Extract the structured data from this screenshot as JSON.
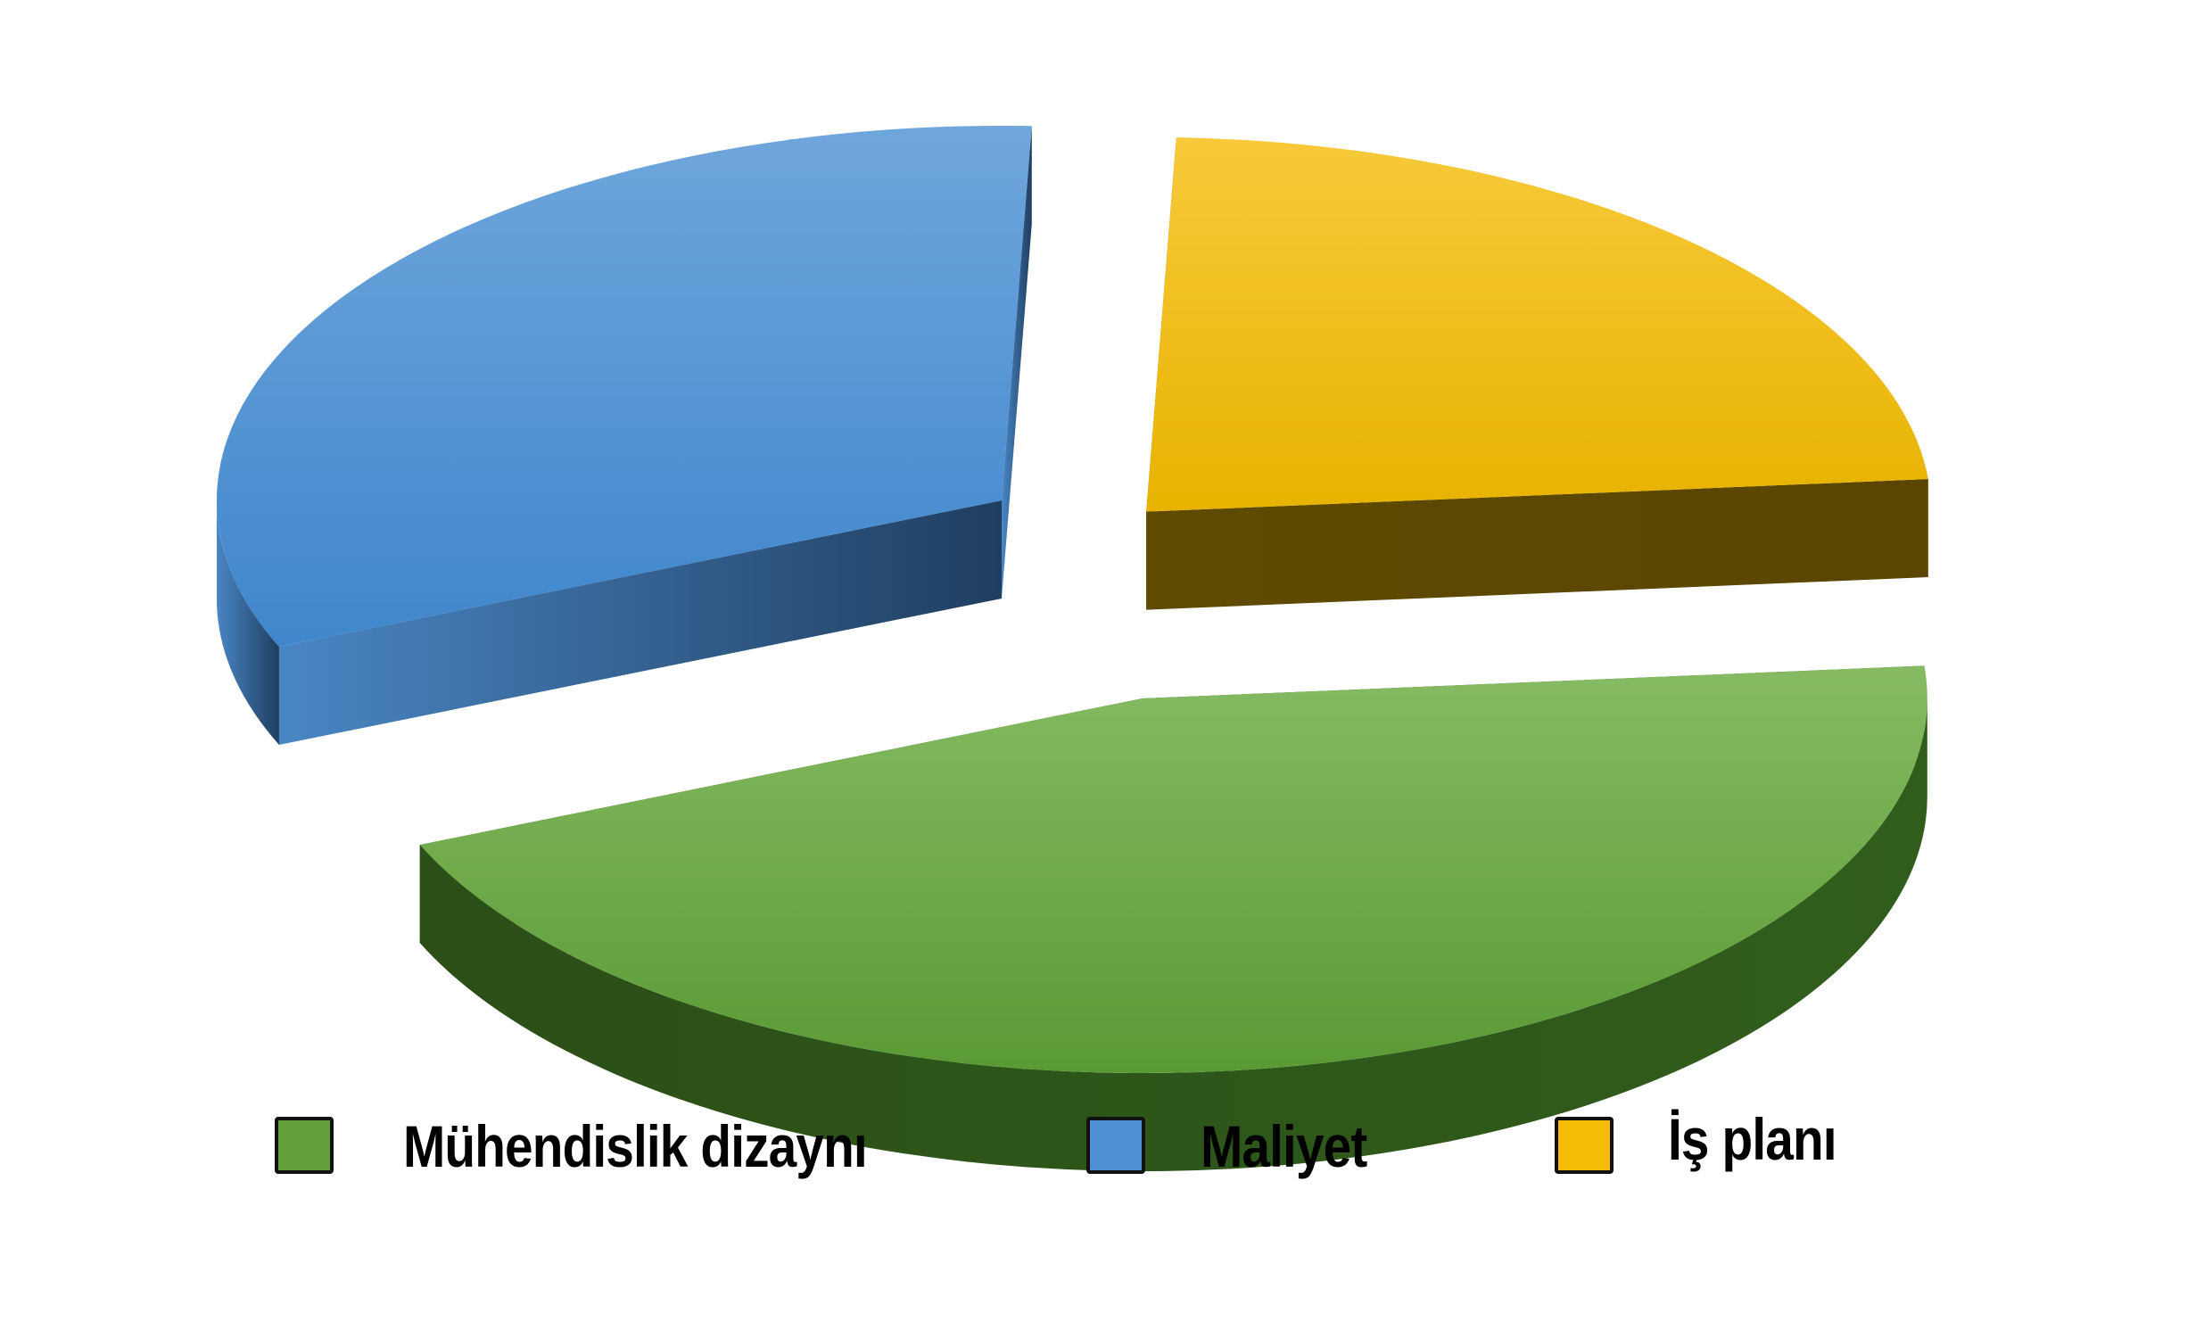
{
  "chart_data": {
    "type": "pie",
    "style": "3d-exploded",
    "title": "",
    "categories": [
      "Mühendislik dizaynı",
      "Maliyet",
      "İş planı"
    ],
    "values": [
      45,
      32,
      23
    ],
    "colors": [
      "#63a23a",
      "#4f91d4",
      "#f5bd06"
    ],
    "side_colors": [
      "#2f5a1b",
      "#2b5784",
      "#5e4a00"
    ],
    "legend_position": "bottom",
    "legend": [
      {
        "label": "Mühendislik dizaynı",
        "color": "#63a23a"
      },
      {
        "label": "Maliyet",
        "color": "#4f91d4"
      },
      {
        "label": "İş planı",
        "color": "#f5bd06"
      }
    ]
  }
}
